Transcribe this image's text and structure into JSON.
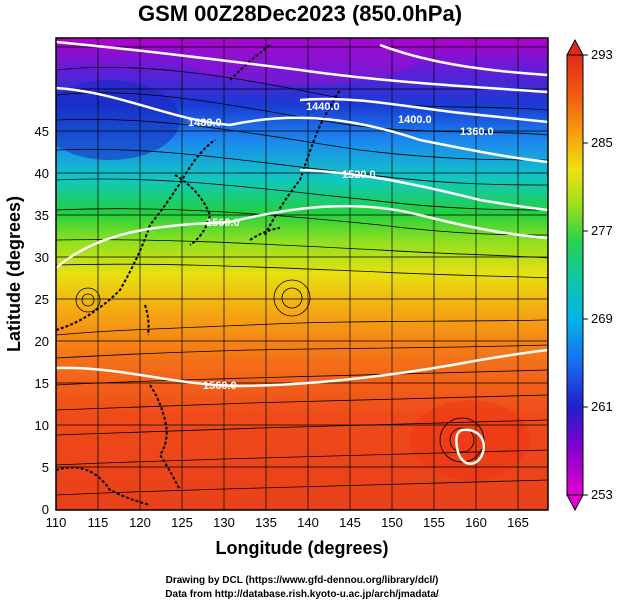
{
  "title": "GSM 00Z28Dec2023 (850.0hPa)",
  "xaxis": {
    "label": "Longitude (degrees)",
    "ticks": [
      "110",
      "115",
      "120",
      "125",
      "130",
      "135",
      "140",
      "145",
      "150",
      "155",
      "160",
      "165"
    ]
  },
  "yaxis": {
    "label": "Latitude (degrees)",
    "ticks": [
      "0",
      "5",
      "10",
      "15",
      "20",
      "25",
      "30",
      "35",
      "40",
      "45"
    ]
  },
  "colorbar": {
    "ticks": [
      "253",
      "261",
      "269",
      "277",
      "285",
      "293"
    ],
    "colors": [
      "#d400b4",
      "#7a00d6",
      "#1020c8",
      "#1a6cf0",
      "#00b4e6",
      "#12c8b0",
      "#2ad24a",
      "#9ee01c",
      "#f0e010",
      "#f6a010",
      "#f25a14",
      "#e02a1a"
    ]
  },
  "contour_labels": [
    "1480.0",
    "1440.0",
    "1400.0",
    "1360.0",
    "1520.0",
    "1560.0",
    "1560.0"
  ],
  "credits": {
    "line1": "Drawing by DCL (https://www.gfd-dennou.org/library/dcl/)",
    "line2": "Data from http://database.rish.kyoto-u.ac.jp/arch/jmadata/"
  }
}
